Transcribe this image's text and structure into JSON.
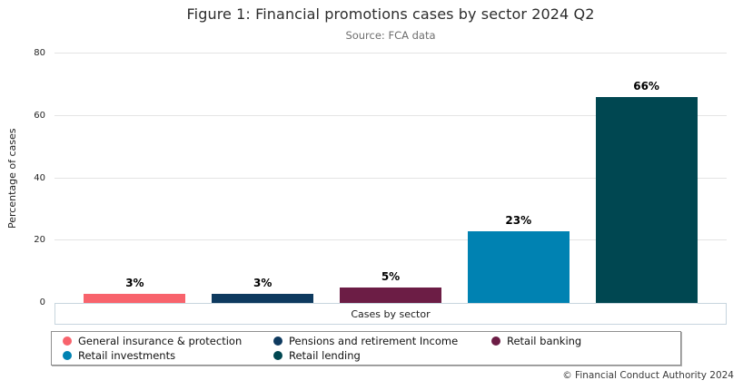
{
  "chart_data": {
    "type": "bar",
    "title": "Figure 1: Financial promotions cases by sector 2024 Q2",
    "subtitle": "Source: FCA data",
    "xlabel": "Cases by sector",
    "ylabel": "Percentage of cases",
    "categories": [
      "General insurance & protection",
      "Pensions and retirement Income",
      "Retail banking",
      "Retail investments",
      "Retail lending"
    ],
    "values": [
      3,
      3,
      5,
      23,
      66
    ],
    "data_labels": [
      "3%",
      "3%",
      "5%",
      "23%",
      "66%"
    ],
    "colors": [
      "#F8636C",
      "#0E3A5F",
      "#6C1D45",
      "#0082B2",
      "#004751"
    ],
    "ylim": [
      0,
      80
    ],
    "yticks": [
      0,
      20,
      40,
      60,
      80
    ],
    "grid": true,
    "legend_position": "bottom"
  },
  "footer": {
    "copyright": "© Financial Conduct Authority 2024"
  }
}
